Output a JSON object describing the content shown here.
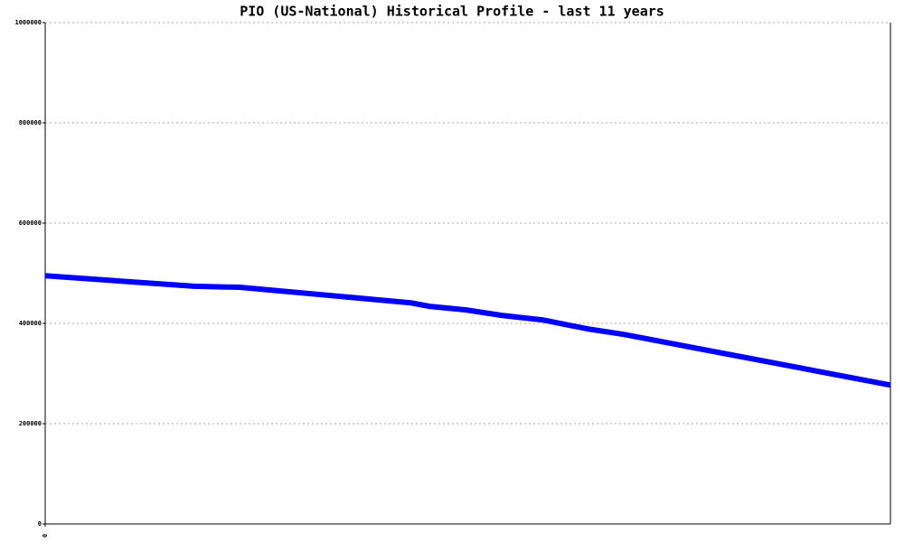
{
  "chart_data": {
    "type": "line",
    "title": "PIO (US-National) Historical Profile - last 11 years",
    "x": [
      0,
      1.94,
      2.53,
      4.76,
      5.0,
      5.47,
      5.94,
      6.47,
      7.06,
      7.53,
      11
    ],
    "series": [
      {
        "name": "PIO",
        "color": "#0000ff",
        "values": [
          495000,
          474000,
          472000,
          441000,
          434000,
          427000,
          416000,
          407000,
          389000,
          378000,
          277000
        ]
      }
    ],
    "xlim": [
      0,
      11
    ],
    "xticks": [
      0
    ],
    "ylim": [
      0,
      1000000
    ],
    "yticks": [
      0,
      200000,
      400000,
      600000,
      800000,
      1000000
    ],
    "grid": true
  }
}
